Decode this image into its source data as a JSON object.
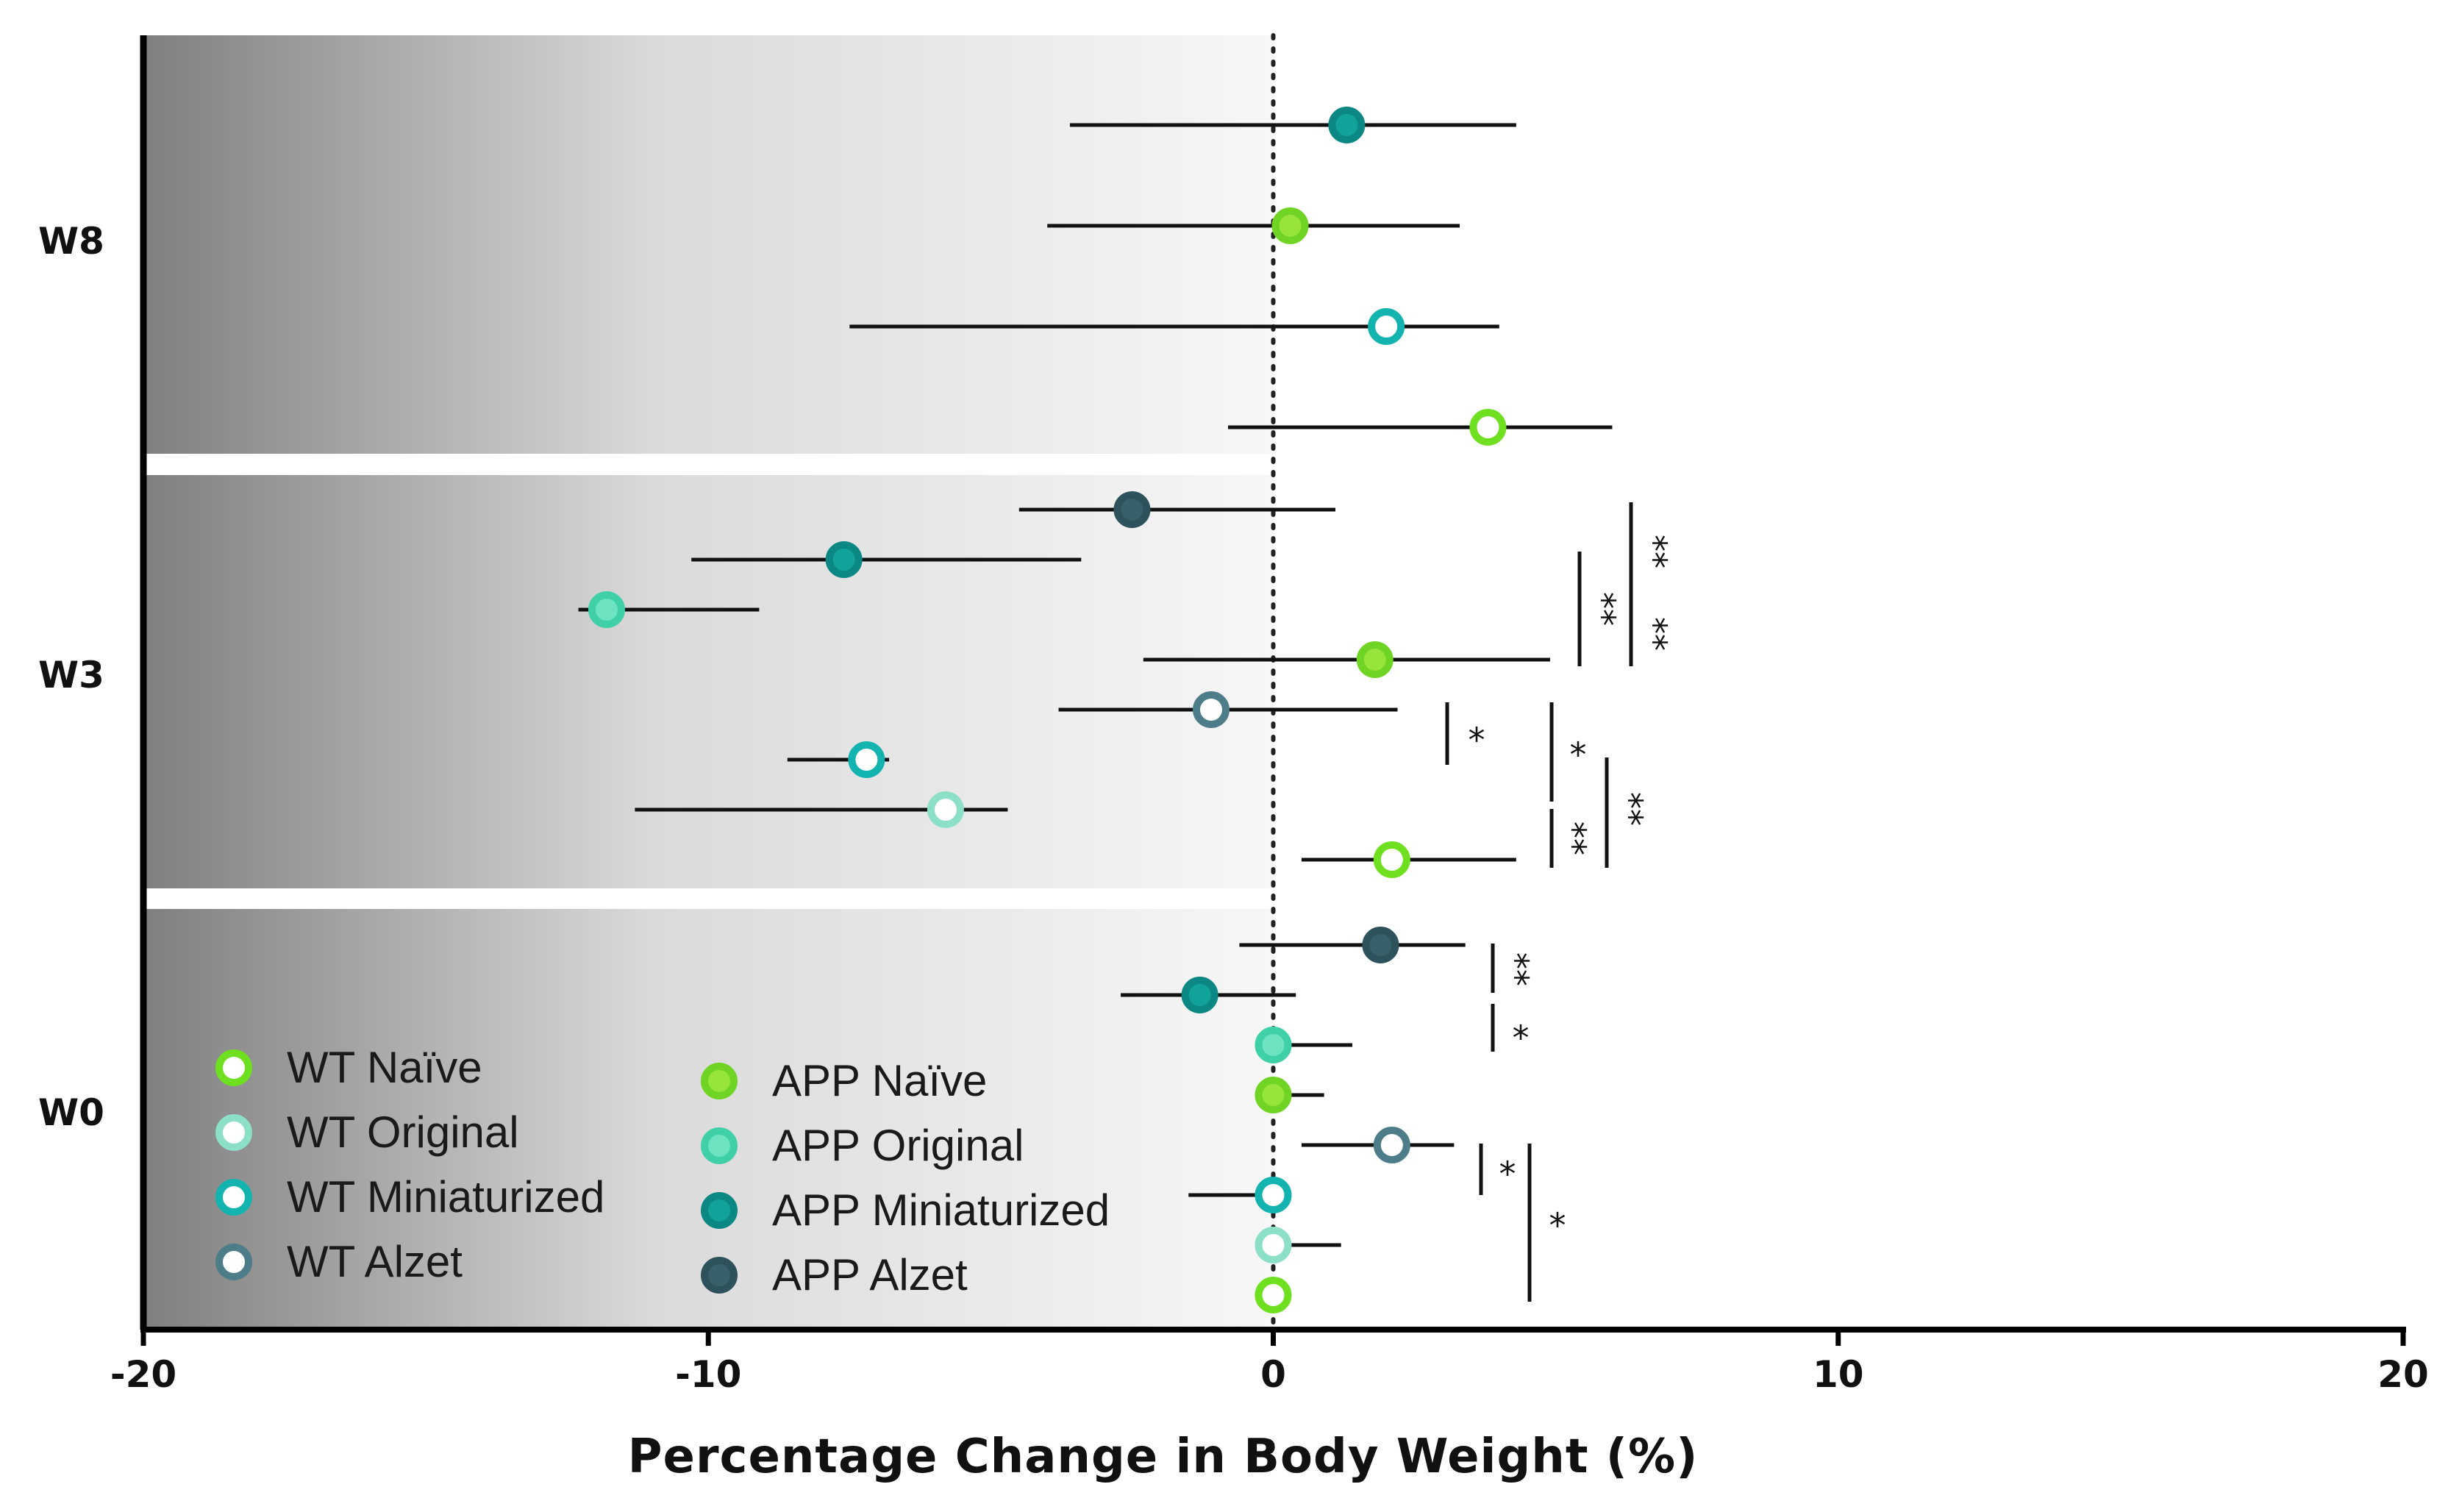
{
  "chart_data": {
    "type": "forest",
    "xlabel": "Percentage Change in Body Weight (%)",
    "xlim": [
      -20,
      20
    ],
    "x_ticks": [
      -20,
      -10,
      0,
      10,
      20
    ],
    "x_tick_labels": [
      "-20",
      "-10",
      "0",
      "10",
      "20"
    ],
    "reference_line": 0,
    "groups": [
      {
        "label": "W8",
        "points": [
          {
            "series": "APP Miniaturized",
            "mean": 1.3,
            "low": -3.6,
            "high": 4.3
          },
          {
            "series": "APP Naïve",
            "mean": 0.3,
            "low": -4.0,
            "high": 3.3
          },
          {
            "series": "WT Miniaturized",
            "mean": 2.0,
            "low": -7.5,
            "high": 4.0
          },
          {
            "series": "WT Naïve",
            "mean": 3.8,
            "low": -0.8,
            "high": 6.0
          }
        ],
        "brackets": []
      },
      {
        "label": "W3",
        "points": [
          {
            "series": "APP Alzet",
            "mean": -2.5,
            "low": -4.5,
            "high": 1.1
          },
          {
            "series": "APP Miniaturized",
            "mean": -7.6,
            "low": -10.3,
            "high": -3.4
          },
          {
            "series": "APP Original",
            "mean": -11.8,
            "low": -12.3,
            "high": -9.1
          },
          {
            "series": "APP Naïve",
            "mean": 1.8,
            "low": -2.3,
            "high": 4.9
          },
          {
            "series": "WT Alzet",
            "mean": -1.1,
            "low": -3.8,
            "high": 2.2
          },
          {
            "series": "WT Miniaturized",
            "mean": -7.2,
            "low": -8.6,
            "high": -6.8
          },
          {
            "series": "WT Original",
            "mean": -5.8,
            "low": -11.3,
            "high": -4.7
          },
          {
            "series": "WT Naïve",
            "mean": 2.1,
            "low": 0.5,
            "high": 4.3
          }
        ],
        "brackets": [
          {
            "from": 1,
            "to": 3,
            "label": "**"
          },
          {
            "from": 0,
            "to": 1,
            "label": "**"
          },
          {
            "from": 1,
            "to": 3,
            "label": "**"
          },
          {
            "from": 4,
            "to": 4,
            "label": "*"
          },
          {
            "from": 4,
            "to": 5,
            "label": "*"
          },
          {
            "from": 5,
            "to": 7,
            "label": "**"
          },
          {
            "from": 4,
            "to": 7,
            "label": "**"
          }
        ]
      },
      {
        "label": "W0",
        "points": [
          {
            "series": "APP Alzet",
            "mean": 1.9,
            "low": -0.6,
            "high": 3.4
          },
          {
            "series": "APP Miniaturized",
            "mean": -1.3,
            "low": -2.7,
            "high": 0.4
          },
          {
            "series": "APP Original",
            "mean": 0.0,
            "low": 0.0,
            "high": 1.4
          },
          {
            "series": "APP Naïve",
            "mean": 0.0,
            "low": 0.0,
            "high": 0.9
          },
          {
            "series": "WT Alzet",
            "mean": 2.1,
            "low": 0.5,
            "high": 3.2
          },
          {
            "series": "WT Miniaturized",
            "mean": 0.0,
            "low": -1.5,
            "high": 0.0
          },
          {
            "series": "WT Original",
            "mean": 0.0,
            "low": 0.0,
            "high": 1.2
          },
          {
            "series": "WT Naïve",
            "mean": 0.0,
            "low": 0.0,
            "high": 0.0
          }
        ],
        "brackets": [
          {
            "from": 0,
            "to": 1,
            "label": "**"
          },
          {
            "from": 1,
            "to": 2,
            "label": "*"
          },
          {
            "from": 4,
            "to": 5,
            "label": "*"
          },
          {
            "from": 4,
            "to": 7,
            "label": "*"
          }
        ]
      }
    ],
    "series_styles": {
      "WT Naïve": {
        "fill": "#ffffff",
        "stroke": "#6fe01f"
      },
      "WT Original": {
        "fill": "#ffffff",
        "stroke": "#8de0c8"
      },
      "WT Miniaturized": {
        "fill": "#ffffff",
        "stroke": "#13b3b0"
      },
      "WT Alzet": {
        "fill": "#ffffff",
        "stroke": "#4d7d88"
      },
      "APP Naïve": {
        "fill": "#97e53b",
        "stroke": "#6fd423"
      },
      "APP Original": {
        "fill": "#6ee3c2",
        "stroke": "#3fd0a8"
      },
      "APP Miniaturized": {
        "fill": "#12a29c",
        "stroke": "#0b8883"
      },
      "APP Alzet": {
        "fill": "#37606a",
        "stroke": "#2d525b"
      }
    },
    "legend": {
      "placement": "lower-left",
      "columns": [
        [
          "WT Naïve",
          "WT Original",
          "WT Miniaturized",
          "WT Alzet"
        ],
        [
          "APP Naïve",
          "APP Original",
          "APP Miniaturized",
          "APP Alzet"
        ]
      ]
    }
  }
}
